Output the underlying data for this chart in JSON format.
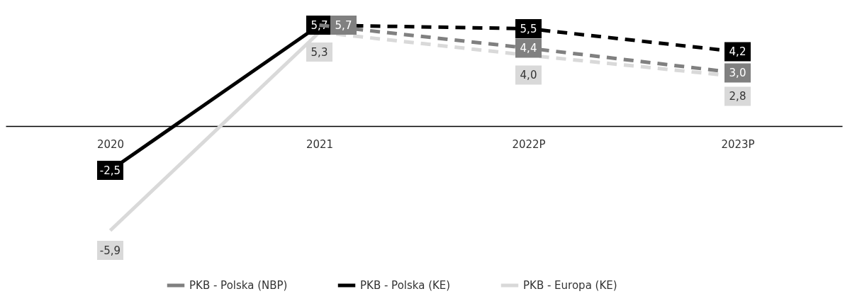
{
  "chart_data": {
    "type": "line",
    "categories": [
      "2020",
      "2021",
      "2022P",
      "2023P"
    ],
    "series": [
      {
        "name": "PKB - Polska (NBP)",
        "color": "#808080",
        "line_style": "dashed",
        "values": [
          null,
          5.7,
          4.4,
          3.0
        ],
        "value_labels": [
          null,
          "5,7",
          "4,4",
          "3,0"
        ]
      },
      {
        "name": "PKB - Polska (KE)",
        "color": "#000000",
        "line_style": "solid",
        "values": [
          -2.5,
          5.7,
          null,
          null
        ],
        "value_labels": [
          "-2,5",
          "5,7",
          null,
          null
        ]
      },
      {
        "color": "#000000",
        "line_style": "dashed",
        "values": [
          null,
          5.7,
          5.5,
          4.2
        ],
        "value_labels": [
          null,
          null,
          "5,5",
          "4,2"
        ]
      },
      {
        "name": "PKB - Europa (KE)",
        "color": "#d9d9d9",
        "line_style": "solid",
        "marker": "none",
        "values": [
          -5.9,
          5.3,
          null,
          null
        ],
        "value_labels": [
          "-5,9",
          "5,3",
          null,
          null
        ]
      },
      {
        "color": "#d9d9d9",
        "line_style": "dashed",
        "marker": "none",
        "values": [
          null,
          5.3,
          4.0,
          2.8
        ],
        "value_labels": [
          null,
          null,
          "4,0",
          "2,8"
        ]
      }
    ],
    "legend": "bottom",
    "grid": false,
    "marker": "square"
  }
}
